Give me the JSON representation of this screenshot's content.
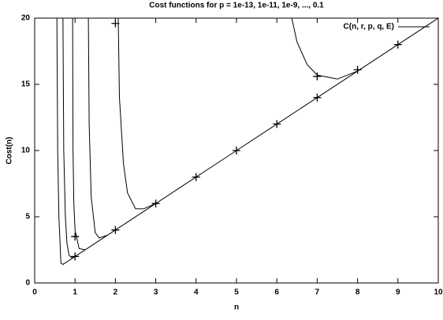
{
  "chart_data": {
    "type": "line",
    "title": "Cost functions for p = 1e-13, 1e-11, 1e-9, ..., 0.1",
    "x_label": "n",
    "y_label": "Cost(n)",
    "xlim": [
      0,
      10
    ],
    "ylim": [
      0,
      20
    ],
    "xticks": [
      0,
      1,
      2,
      3,
      4,
      5,
      6,
      7,
      8,
      9,
      10
    ],
    "yticks": [
      0,
      5,
      10,
      15,
      20
    ],
    "legend": "top-right",
    "series": [
      {
        "name": "C(n, r, p, q, E)",
        "color": "#000000",
        "curves": [
          {
            "x": [
              0.55,
              0.57,
              0.6,
              0.65,
              0.7,
              0.75,
              1,
              2,
              3,
              4,
              5,
              6,
              7,
              8,
              9,
              10
            ],
            "values": [
              20,
              10,
              5,
              1.5,
              1.4,
              1.5,
              2,
              4,
              6,
              8,
              10,
              12,
              14,
              16,
              18,
              20
            ]
          },
          {
            "x": [
              0.7,
              0.72,
              0.76,
              0.8,
              0.85,
              0.92,
              1
            ],
            "values": [
              20,
              10,
              5,
              3,
              2.1,
              1.9,
              2
            ]
          },
          {
            "x": [
              0.94,
              0.95,
              0.97,
              1,
              1.1,
              1.25
            ],
            "values": [
              20,
              10,
              6,
              4,
              2.6,
              2.5
            ]
          },
          {
            "x": [
              1.33,
              1.35,
              1.4,
              1.5,
              1.6,
              1.8
            ],
            "values": [
              20,
              12,
              6.5,
              3.8,
              3.4,
              3.6
            ]
          },
          {
            "x": [
              2.07,
              2.1,
              2.2,
              2.3,
              2.5,
              2.7,
              3
            ],
            "values": [
              20,
              14,
              9,
              6.8,
              5.6,
              5.6,
              6
            ]
          },
          {
            "x": [
              6.37,
              6.5,
              6.75,
              7,
              7.5,
              8,
              8.1
            ],
            "values": [
              20,
              18.2,
              16.5,
              15.7,
              15.4,
              16,
              16.2
            ]
          }
        ]
      }
    ],
    "points": {
      "x": [
        1,
        1,
        2,
        2,
        3,
        4,
        5,
        6,
        7,
        7,
        8,
        9
      ],
      "values": [
        2,
        3.5,
        4,
        19.6,
        6,
        8,
        10,
        12,
        14,
        15.6,
        16.1,
        18
      ]
    }
  }
}
